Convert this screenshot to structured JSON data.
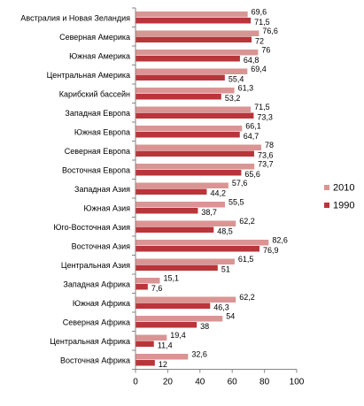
{
  "chart_data": {
    "type": "bar",
    "orientation": "horizontal",
    "categories": [
      "Австралия и Новая Зеландия",
      "Северная Америка",
      "Южная Америка",
      "Центральная Америка",
      "Карибский бассейн",
      "Западная Европа",
      "Южная Европа",
      "Северная Европа",
      "Восточная Европа",
      "Западная  Азия",
      "Южная Азия",
      "Юго-Восточная  Азия",
      "Восточная Азия",
      "Центральная Азия",
      "Западная  Африка",
      "Южная Африка",
      "Северная Африка",
      "Центральная Африка",
      "Восточная Африка"
    ],
    "series": [
      {
        "name": "2010",
        "color": "#d99594",
        "values": [
          69.6,
          76.6,
          76,
          69.4,
          61.3,
          71.5,
          66.1,
          78,
          73.7,
          57.6,
          55.5,
          62.2,
          82.6,
          61.5,
          15.1,
          62.2,
          54,
          19.4,
          32.6
        ],
        "labels": [
          "69,6",
          "76,6",
          "76",
          "69,4",
          "61,3",
          "71,5",
          "66,1",
          "78",
          "73,7",
          "57,6",
          "55,5",
          "62,2",
          "82,6",
          "61,5",
          "15,1",
          "62,2",
          "54",
          "19,4",
          "32,6"
        ]
      },
      {
        "name": "1990",
        "color": "#b8353a",
        "values": [
          71.5,
          72,
          64.8,
          55.4,
          53.2,
          73.3,
          64.7,
          73.6,
          65.6,
          44.2,
          38.7,
          48.5,
          76.9,
          51,
          7.6,
          46.3,
          38,
          11.4,
          12
        ],
        "labels": [
          "71,5",
          "72",
          "64,8",
          "55,4",
          "53,2",
          "73,3",
          "64,7",
          "73,6",
          "65,6",
          "44,2",
          "38,7",
          "48,5",
          "76,9",
          "51",
          "7,6",
          "46,3",
          "38",
          "11,4",
          "12"
        ]
      }
    ],
    "xlim": [
      0,
      100
    ],
    "xticks": [
      0,
      20,
      40,
      60,
      80,
      100
    ],
    "title": "",
    "xlabel": "",
    "ylabel": "",
    "grid": false,
    "legend": "right"
  }
}
